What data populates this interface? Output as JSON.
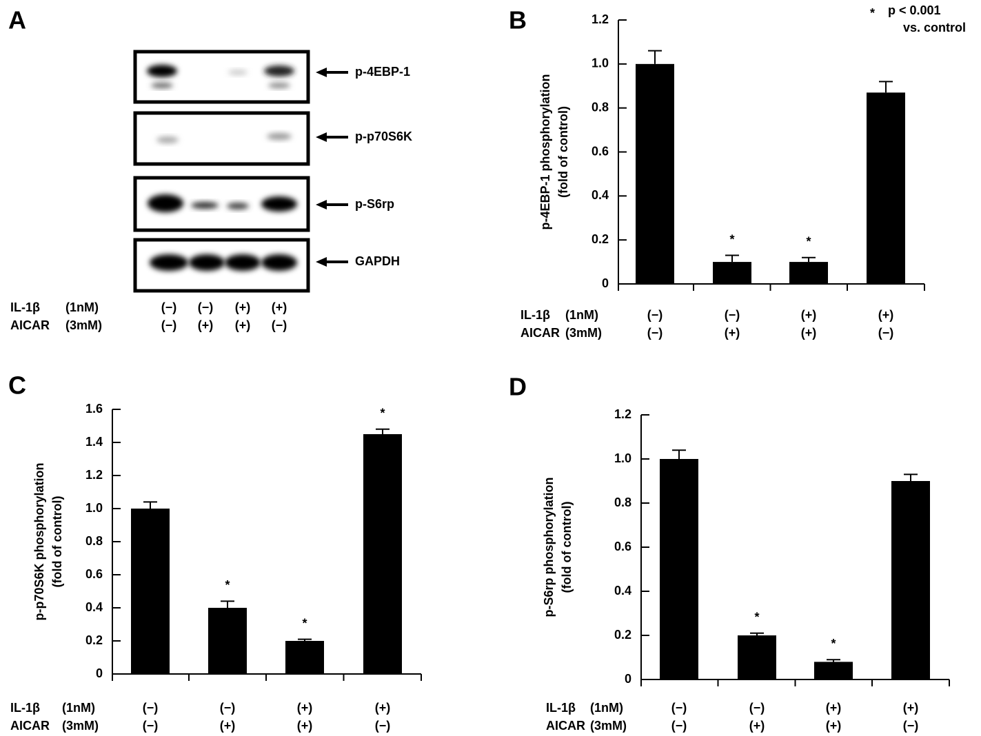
{
  "blot": {
    "panel": "A",
    "bands": [
      "p-4EBP-1",
      "p-p70S6K",
      "p-S6rp",
      "GAPDH"
    ],
    "treatments": [
      {
        "name": "IL-1β",
        "dose": "(1nM)",
        "signs": [
          "(−)",
          "(−)",
          "(+)",
          "(+)"
        ]
      },
      {
        "name": "AICAR",
        "dose": "(3mM)",
        "signs": [
          "(−)",
          "(+)",
          "(+)",
          "(−)"
        ]
      }
    ]
  },
  "chart_data": [
    {
      "type": "bar",
      "panel": "B",
      "ylabel": [
        "p-4EBP-1 phosphorylation",
        "(fold of control)"
      ],
      "values": [
        1.0,
        0.1,
        0.1,
        0.87
      ],
      "errors": [
        0.06,
        0.03,
        0.02,
        0.05
      ],
      "annotations": [
        null,
        "*",
        "*",
        null
      ],
      "color": "#000000",
      "note": {
        "symbol": "*",
        "text": [
          "p < 0.001",
          "vs. control"
        ]
      },
      "ylim": [
        0,
        1.2
      ],
      "yticks": [
        0,
        0.2,
        0.4,
        0.6,
        0.8,
        {
          "value": 1,
          "label": "1.0"
        },
        1.2
      ],
      "treatments": [
        {
          "name": "IL-1β",
          "dose": "(1nM)",
          "signs": [
            "(−)",
            "(−)",
            "(+)",
            "(+)"
          ]
        },
        {
          "name": "AICAR",
          "dose": "(3mM)",
          "signs": [
            "(−)",
            "(+)",
            "(+)",
            "(−)"
          ]
        }
      ]
    },
    {
      "type": "bar",
      "panel": "C",
      "ylabel": [
        "p-p70S6K phosphorylation",
        "(fold of control)"
      ],
      "values": [
        1.0,
        0.4,
        0.2,
        1.45
      ],
      "errors": [
        0.04,
        0.04,
        0.01,
        0.03
      ],
      "annotations": [
        null,
        "*",
        "*",
        "*"
      ],
      "color": "#000000",
      "ylim": [
        0,
        1.6
      ],
      "yticks": [
        0,
        0.2,
        0.4,
        0.6,
        0.8,
        {
          "value": 1,
          "label": "1.0"
        },
        1.2,
        1.4,
        1.6
      ],
      "treatments": [
        {
          "name": "IL-1β",
          "dose": "(1nM)",
          "signs": [
            "(−)",
            "(−)",
            "(+)",
            "(+)"
          ]
        },
        {
          "name": "AICAR",
          "dose": "(3mM)",
          "signs": [
            "(−)",
            "(+)",
            "(+)",
            "(−)"
          ]
        }
      ]
    },
    {
      "type": "bar",
      "panel": "D",
      "ylabel": [
        "p-S6rp phosphorylation",
        "(fold of control)"
      ],
      "values": [
        1.0,
        0.2,
        0.08,
        0.9
      ],
      "errors": [
        0.04,
        0.01,
        0.01,
        0.03
      ],
      "annotations": [
        null,
        "*",
        "*",
        null
      ],
      "color": "#000000",
      "ylim": [
        0,
        1.2
      ],
      "yticks": [
        0,
        0.2,
        0.4,
        0.6,
        0.8,
        {
          "value": 1,
          "label": "1.0"
        },
        1.2
      ],
      "treatments": [
        {
          "name": "IL-1β",
          "dose": "(1nM)",
          "signs": [
            "(−)",
            "(−)",
            "(+)",
            "(+)"
          ]
        },
        {
          "name": "AICAR",
          "dose": "(3mM)",
          "signs": [
            "(−)",
            "(+)",
            "(+)",
            "(−)"
          ]
        }
      ]
    }
  ]
}
